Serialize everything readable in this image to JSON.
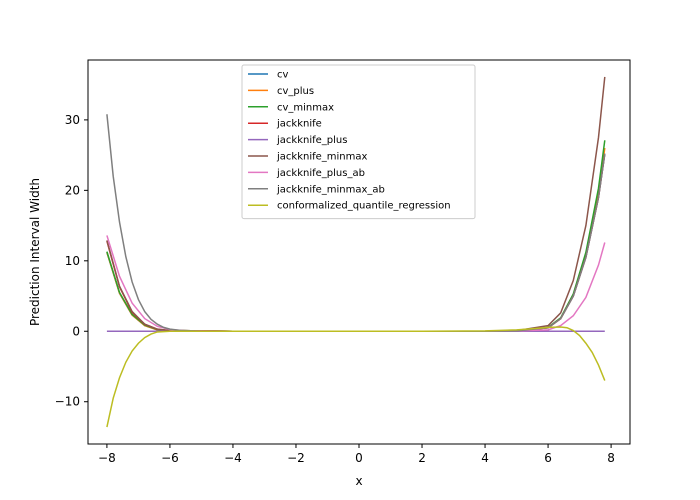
{
  "chart_data": {
    "type": "line",
    "title": "",
    "xlabel": "x",
    "ylabel": "Prediction Interval Width",
    "xlim": [
      -8.6,
      8.6
    ],
    "ylim": [
      -16,
      38.5
    ],
    "xticks": [
      -8,
      -6,
      -4,
      -2,
      0,
      2,
      4,
      6,
      8
    ],
    "yticks": [
      -10,
      0,
      10,
      20,
      30
    ],
    "grid": false,
    "legend_placement": "upper center",
    "series": [
      {
        "name": "cv",
        "color": "#1f77b4",
        "points": [
          [
            -8,
            11.2
          ],
          [
            -7.6,
            5.4
          ],
          [
            -7.2,
            2.3
          ],
          [
            -6.8,
            0.8
          ],
          [
            -6.4,
            0.2
          ],
          [
            -6,
            0.1
          ],
          [
            -4,
            0
          ],
          [
            -2,
            0
          ],
          [
            0,
            0
          ],
          [
            2,
            0
          ],
          [
            4,
            0
          ],
          [
            5,
            0.05
          ],
          [
            6,
            0.5
          ],
          [
            6.4,
            1.8
          ],
          [
            6.8,
            5.0
          ],
          [
            7.2,
            10.5
          ],
          [
            7.6,
            19.0
          ],
          [
            7.8,
            25.2
          ]
        ]
      },
      {
        "name": "cv_plus",
        "color": "#ff7f0e",
        "points": [
          [
            -8,
            11.2
          ],
          [
            -7.6,
            5.4
          ],
          [
            -7.2,
            2.3
          ],
          [
            -6.8,
            0.8
          ],
          [
            -6.4,
            0.2
          ],
          [
            -6,
            0.1
          ],
          [
            -4,
            0
          ],
          [
            -2,
            0
          ],
          [
            0,
            0
          ],
          [
            2,
            0
          ],
          [
            4,
            0
          ],
          [
            5,
            0.05
          ],
          [
            6,
            0.5
          ],
          [
            6.4,
            1.8
          ],
          [
            6.8,
            5.1
          ],
          [
            7.2,
            10.8
          ],
          [
            7.6,
            19.5
          ],
          [
            7.8,
            26.0
          ]
        ]
      },
      {
        "name": "cv_minmax",
        "color": "#2ca02c",
        "points": [
          [
            -8,
            11.3
          ],
          [
            -7.6,
            5.5
          ],
          [
            -7.2,
            2.4
          ],
          [
            -6.8,
            0.9
          ],
          [
            -6.4,
            0.25
          ],
          [
            -6,
            0.1
          ],
          [
            -4,
            0
          ],
          [
            -2,
            0
          ],
          [
            0,
            0
          ],
          [
            2,
            0
          ],
          [
            4,
            0
          ],
          [
            5,
            0.05
          ],
          [
            6,
            0.55
          ],
          [
            6.4,
            1.9
          ],
          [
            6.8,
            5.3
          ],
          [
            7.2,
            11.2
          ],
          [
            7.6,
            20.3
          ],
          [
            7.8,
            27.1
          ]
        ]
      },
      {
        "name": "jackknife",
        "color": "#d62728",
        "points": [
          [
            -8,
            12.8
          ],
          [
            -7.6,
            6.3
          ],
          [
            -7.2,
            2.7
          ],
          [
            -6.8,
            1.0
          ],
          [
            -6.4,
            0.3
          ],
          [
            -6,
            0.1
          ],
          [
            -4,
            0
          ],
          [
            -2,
            0
          ],
          [
            0,
            0
          ],
          [
            2,
            0
          ],
          [
            4,
            0
          ],
          [
            5,
            0.05
          ],
          [
            6,
            0.5
          ],
          [
            6.4,
            1.8
          ],
          [
            6.8,
            5.0
          ],
          [
            7.2,
            10.5
          ],
          [
            7.6,
            19.0
          ],
          [
            7.8,
            25.2
          ]
        ]
      },
      {
        "name": "jackknife_plus",
        "color": "#9467bd",
        "points": [
          [
            -8,
            0
          ],
          [
            -6,
            0
          ],
          [
            -4,
            0
          ],
          [
            -2,
            0
          ],
          [
            0,
            0
          ],
          [
            2,
            0
          ],
          [
            4,
            0
          ],
          [
            6,
            0
          ],
          [
            7.8,
            0
          ]
        ]
      },
      {
        "name": "jackknife_minmax",
        "color": "#8c564b",
        "points": [
          [
            -8,
            12.9
          ],
          [
            -7.6,
            6.4
          ],
          [
            -7.2,
            2.8
          ],
          [
            -6.8,
            1.0
          ],
          [
            -6.4,
            0.3
          ],
          [
            -6,
            0.1
          ],
          [
            -4,
            0
          ],
          [
            -2,
            0
          ],
          [
            0,
            0
          ],
          [
            2,
            0
          ],
          [
            4,
            0
          ],
          [
            5,
            0.1
          ],
          [
            6,
            0.8
          ],
          [
            6.4,
            2.6
          ],
          [
            6.8,
            7.2
          ],
          [
            7.2,
            15.0
          ],
          [
            7.6,
            27.5
          ],
          [
            7.8,
            36.1
          ]
        ]
      },
      {
        "name": "jackknife_plus_ab",
        "color": "#e377c2",
        "points": [
          [
            -8,
            13.6
          ],
          [
            -7.6,
            7.8
          ],
          [
            -7.2,
            4.0
          ],
          [
            -6.8,
            1.8
          ],
          [
            -6.4,
            0.7
          ],
          [
            -6,
            0.25
          ],
          [
            -5.5,
            0.05
          ],
          [
            -4,
            0
          ],
          [
            -2,
            0
          ],
          [
            0,
            0
          ],
          [
            2,
            0
          ],
          [
            4,
            0
          ],
          [
            5,
            0.05
          ],
          [
            6,
            0.2
          ],
          [
            6.4,
            0.8
          ],
          [
            6.8,
            2.2
          ],
          [
            7.2,
            4.8
          ],
          [
            7.6,
            9.4
          ],
          [
            7.8,
            12.6
          ]
        ]
      },
      {
        "name": "jackknife_minmax_ab",
        "color": "#7f7f7f",
        "points": [
          [
            -8,
            30.8
          ],
          [
            -7.8,
            22.0
          ],
          [
            -7.6,
            15.5
          ],
          [
            -7.4,
            10.6
          ],
          [
            -7.2,
            7.0
          ],
          [
            -7,
            4.5
          ],
          [
            -6.8,
            2.8
          ],
          [
            -6.6,
            1.7
          ],
          [
            -6.4,
            1.0
          ],
          [
            -6.2,
            0.55
          ],
          [
            -6,
            0.3
          ],
          [
            -5.6,
            0.1
          ],
          [
            -5,
            0
          ],
          [
            -4,
            0
          ],
          [
            -2,
            0
          ],
          [
            0,
            0
          ],
          [
            2,
            0
          ],
          [
            4,
            0
          ],
          [
            5,
            0.05
          ],
          [
            6,
            0.5
          ],
          [
            6.4,
            1.8
          ],
          [
            6.8,
            5.0
          ],
          [
            7.2,
            10.5
          ],
          [
            7.6,
            19.0
          ],
          [
            7.8,
            25.2
          ]
        ]
      },
      {
        "name": "conformalized_quantile_regression",
        "color": "#bcbd22",
        "points": [
          [
            -8,
            -13.6
          ],
          [
            -7.8,
            -9.5
          ],
          [
            -7.6,
            -6.6
          ],
          [
            -7.4,
            -4.4
          ],
          [
            -7.2,
            -2.8
          ],
          [
            -7,
            -1.7
          ],
          [
            -6.8,
            -0.9
          ],
          [
            -6.6,
            -0.4
          ],
          [
            -6.4,
            -0.1
          ],
          [
            -6,
            0
          ],
          [
            -4,
            0
          ],
          [
            -2,
            0
          ],
          [
            0,
            0
          ],
          [
            2,
            0
          ],
          [
            4,
            0.05
          ],
          [
            5,
            0.2
          ],
          [
            5.6,
            0.4
          ],
          [
            6,
            0.55
          ],
          [
            6.4,
            0.6
          ],
          [
            6.6,
            0.5
          ],
          [
            6.8,
            0.1
          ],
          [
            7,
            -0.6
          ],
          [
            7.2,
            -1.7
          ],
          [
            7.4,
            -3.0
          ],
          [
            7.6,
            -4.8
          ],
          [
            7.8,
            -7.0
          ]
        ]
      }
    ]
  }
}
